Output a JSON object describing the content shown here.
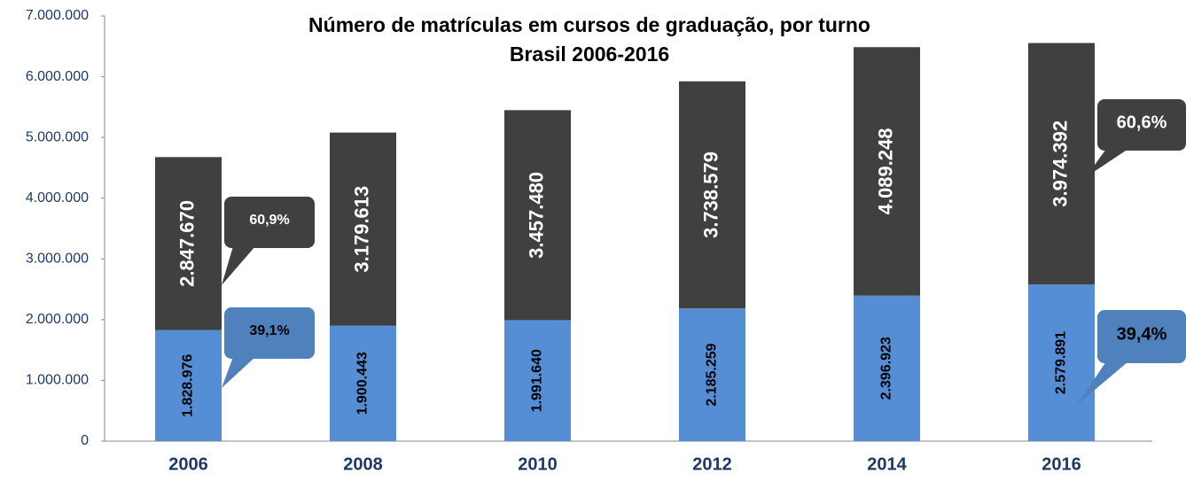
{
  "chart_data": {
    "type": "stacked_bar",
    "title": [
      "Número de matrículas em cursos de graduação, por turno",
      "Brasil 2006-2016"
    ],
    "categories": [
      "2006",
      "2008",
      "2010",
      "2012",
      "2014",
      "2016"
    ],
    "series": [
      {
        "color": "#558ed5",
        "values": [
          1828976,
          1900443,
          1991640,
          2185259,
          2396923,
          2579891
        ],
        "value_labels": [
          "1.828.976",
          "1.900.443",
          "1.991.640",
          "2.185.259",
          "2.396.923",
          "2.579.891"
        ]
      },
      {
        "color": "#404040",
        "values": [
          2847670,
          3179613,
          3457480,
          3738579,
          4089248,
          3974392
        ],
        "value_labels": [
          "2.847.670",
          "3.179.613",
          "3.457.480",
          "3.738.579",
          "4.089.248",
          "3.974.392"
        ]
      }
    ],
    "ylim": [
      0,
      7000000
    ],
    "yticks": [
      0,
      {
        "value": 1000000,
        "label": "1.000.000"
      },
      {
        "value": 2000000,
        "label": "2.000.000"
      },
      {
        "value": 3000000,
        "label": "3.000.000"
      },
      {
        "value": 4000000,
        "label": "4.000.000"
      },
      {
        "value": 5000000,
        "label": "5.000.000"
      },
      {
        "value": 6000000,
        "label": "6.000.000"
      },
      {
        "value": 7000000,
        "label": "7.000.000"
      }
    ],
    "annotations": [
      "60,9%",
      "39,1%",
      "60,6%",
      "39,4%"
    ]
  }
}
